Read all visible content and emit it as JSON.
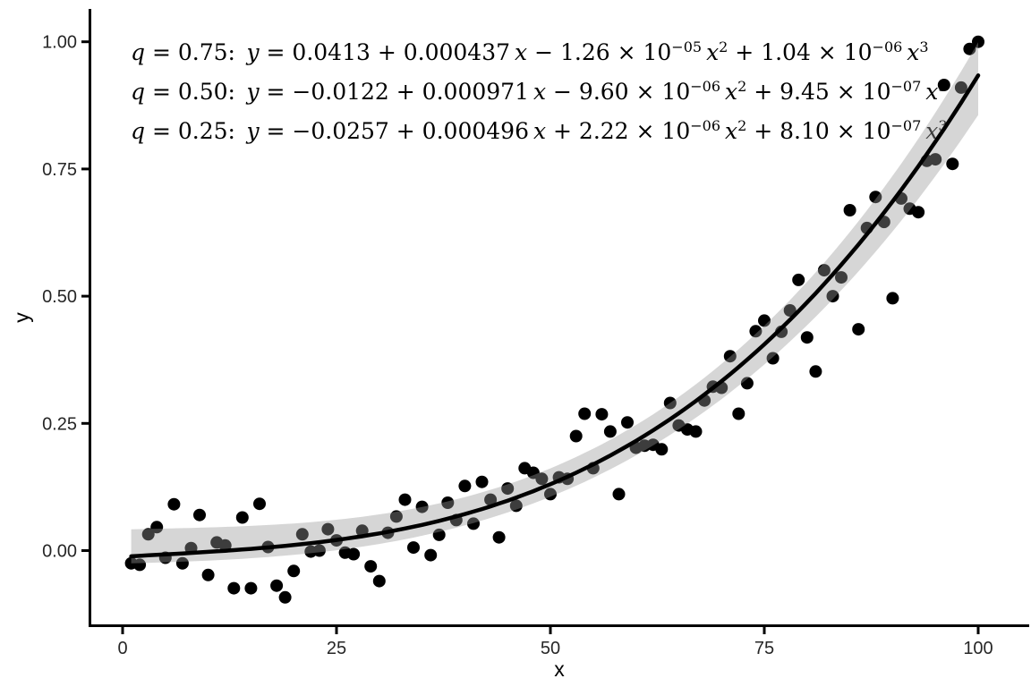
{
  "chart_data": {
    "type": "scatter",
    "title": "",
    "xlabel": "x",
    "ylabel": "y",
    "x_ticks": [
      0,
      25,
      50,
      75,
      100
    ],
    "x_tick_labels": [
      "0",
      "25",
      "50",
      "75",
      "100"
    ],
    "y_ticks": [
      0.0,
      0.25,
      0.5,
      0.75,
      1.0
    ],
    "y_tick_labels": [
      "0.00",
      "0.25",
      "0.50",
      "0.75",
      "1.00"
    ],
    "xlim": [
      -4,
      104.5
    ],
    "ylim": [
      -0.147,
      1.06
    ],
    "grid": false,
    "legend": "none",
    "points_x": [
      1,
      2,
      3,
      4,
      5,
      6,
      7,
      8,
      9,
      10,
      11,
      12,
      13,
      14,
      15,
      16,
      17,
      18,
      19,
      20,
      21,
      22,
      23,
      24,
      25,
      26,
      27,
      28,
      29,
      30,
      31,
      32,
      33,
      34,
      35,
      36,
      37,
      38,
      39,
      40,
      41,
      42,
      43,
      44,
      45,
      46,
      47,
      48,
      49,
      50,
      51,
      52,
      53,
      54,
      55,
      56,
      57,
      58,
      59,
      60,
      61,
      62,
      63,
      64,
      65,
      66,
      67,
      68,
      69,
      70,
      71,
      72,
      73,
      74,
      75,
      76,
      77,
      78,
      79,
      80,
      81,
      82,
      83,
      84,
      85,
      86,
      87,
      88,
      89,
      90,
      91,
      92,
      93,
      94,
      95,
      96,
      97,
      98,
      99,
      100
    ],
    "points_y": [
      -0.025,
      -0.028,
      0.032,
      0.046,
      -0.014,
      0.091,
      -0.025,
      0.005,
      0.07,
      -0.048,
      0.016,
      0.01,
      -0.074,
      0.065,
      -0.074,
      0.092,
      0.007,
      -0.069,
      -0.092,
      -0.04,
      0.032,
      -0.002,
      0.0,
      0.042,
      0.02,
      -0.004,
      -0.007,
      0.039,
      -0.031,
      -0.06,
      0.035,
      0.067,
      0.1,
      0.006,
      0.086,
      -0.009,
      0.031,
      0.094,
      0.06,
      0.127,
      0.053,
      0.135,
      0.1,
      0.026,
      0.122,
      0.088,
      0.162,
      0.153,
      0.141,
      0.111,
      0.144,
      0.141,
      0.225,
      0.269,
      0.162,
      0.268,
      0.234,
      0.111,
      0.252,
      0.202,
      0.206,
      0.208,
      0.199,
      0.29,
      0.246,
      0.238,
      0.234,
      0.295,
      0.322,
      0.32,
      0.382,
      0.269,
      0.329,
      0.431,
      0.452,
      0.378,
      0.43,
      0.472,
      0.532,
      0.419,
      0.352,
      0.551,
      0.5,
      0.537,
      0.669,
      0.435,
      0.634,
      0.695,
      0.646,
      0.496,
      0.692,
      0.672,
      0.665,
      0.766,
      0.769,
      0.915,
      0.76,
      0.91,
      0.986,
      1.0
    ],
    "smooth_x_range": [
      1,
      100
    ],
    "band": {
      "upper_q": 0.75,
      "lower_q": 0.25,
      "median_q": 0.5
    },
    "quantile_fits": [
      {
        "q": 0.75,
        "coeffs": [
          0.0413,
          0.000437,
          -1.26e-05,
          1.04e-06
        ],
        "equation": "q = 0.75: y = 0.0413 + 0.000437 x − 1.26 × 10^{−05} x^{2} + 1.04 × 10^{−06} x^{3}"
      },
      {
        "q": 0.5,
        "coeffs": [
          -0.0122,
          0.000971,
          -9.6e-06,
          9.45e-07
        ],
        "equation": "q = 0.50: y = −0.0122 + 0.000971 x − 9.60 × 10^{−06} x^{2} + 9.45 × 10^{−07} x^{3}"
      },
      {
        "q": 0.25,
        "coeffs": [
          -0.0257,
          0.000496,
          2.22e-06,
          8.1e-07
        ],
        "equation": "q = 0.25: y = −0.0257 + 0.000496 x + 2.22 × 10^{−06} x^{2} + 8.10 × 10^{−07} x^{3}"
      }
    ],
    "colors": {
      "background": "#ffffff",
      "point": "#000000",
      "curve": "#000000",
      "band": "rgba(153,153,153,0.40)",
      "axis": "#000000",
      "axis_text": "#262626",
      "equation_text": "#000000"
    }
  }
}
